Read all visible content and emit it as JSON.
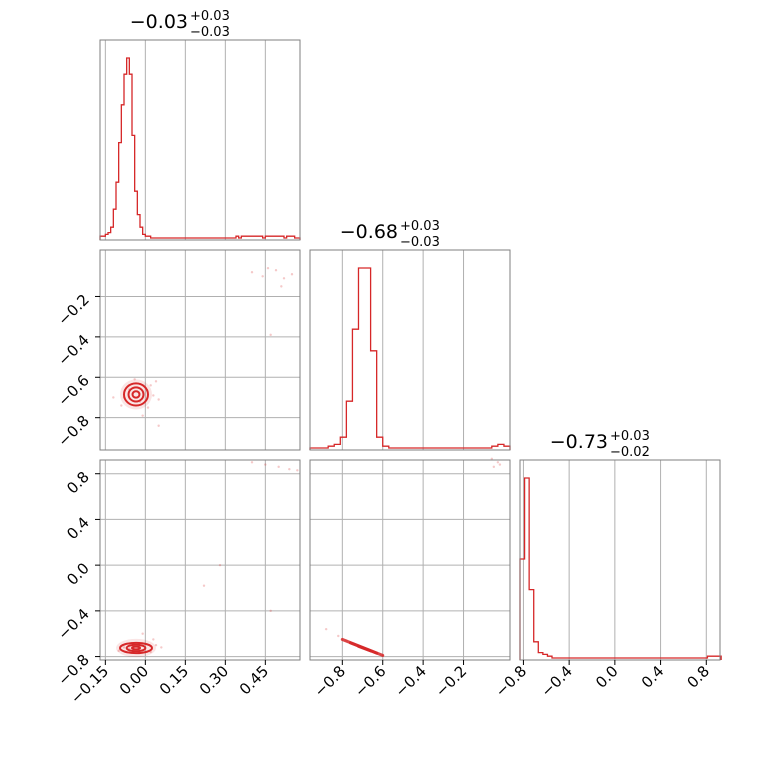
{
  "accent_color": "#d62728",
  "grid_color": "#b0b0b0",
  "chart_data": {
    "type": "scatter",
    "subtype": "corner plot",
    "grid": true,
    "parameters": [
      {
        "title": {
          "median": "−0.03",
          "plus": "+0.03",
          "minus": "−0.03"
        },
        "range": [
          -0.17,
          0.58
        ],
        "ticks": [
          -0.15,
          0.0,
          0.15,
          0.3,
          0.45
        ],
        "tick_labels": [
          "−0.15",
          "0.00",
          "0.15",
          "0.30",
          "0.45"
        ],
        "hist": {
          "x": [
            -0.165,
            -0.155,
            -0.145,
            -0.135,
            -0.125,
            -0.115,
            -0.105,
            -0.095,
            -0.085,
            -0.075,
            -0.065,
            -0.055,
            -0.045,
            -0.035,
            -0.025,
            -0.015,
            -0.005,
            0.005,
            0.015,
            0.025,
            0.035,
            0.045,
            0.055,
            0.065,
            0.075,
            0.085,
            0.095,
            0.105,
            0.115,
            0.125,
            0.135,
            0.145,
            0.155,
            0.165,
            0.175,
            0.185,
            0.195,
            0.205,
            0.215,
            0.225,
            0.235,
            0.245,
            0.255,
            0.265,
            0.275,
            0.285,
            0.295,
            0.305,
            0.315,
            0.325,
            0.335,
            0.345,
            0.355,
            0.365,
            0.375,
            0.385,
            0.395,
            0.405,
            0.415,
            0.425,
            0.435,
            0.445,
            0.455,
            0.465,
            0.475,
            0.485,
            0.495,
            0.505,
            0.515,
            0.525,
            0.535,
            0.545,
            0.555,
            0.565,
            0.575
          ],
          "counts": [
            1,
            1,
            2,
            3,
            6,
            16,
            31,
            53,
            74,
            91,
            100,
            91,
            57,
            26,
            13,
            6,
            2,
            1,
            1,
            0,
            0,
            0,
            0,
            0,
            0,
            0,
            0,
            0,
            0,
            0,
            0,
            0,
            0,
            0,
            0,
            0,
            0,
            0,
            0,
            0,
            0,
            0,
            0,
            0,
            0,
            0,
            0,
            0,
            0,
            0,
            0,
            1,
            0,
            1,
            1,
            1,
            1,
            1,
            1,
            1,
            1,
            0,
            1,
            1,
            1,
            1,
            1,
            1,
            1,
            0,
            1,
            1,
            1,
            0,
            0
          ]
        }
      },
      {
        "title": {
          "median": "−0.68",
          "plus": "+0.03",
          "minus": "−0.03"
        },
        "range": [
          -0.96,
          0.03
        ],
        "ticks": [
          -0.8,
          -0.6,
          -0.4,
          -0.2
        ],
        "tick_labels": [
          "−0.8",
          "−0.6",
          "−0.4",
          "−0.2"
        ],
        "hist": {
          "x": [
            -0.945,
            -0.915,
            -0.885,
            -0.855,
            -0.825,
            -0.795,
            -0.765,
            -0.735,
            -0.705,
            -0.675,
            -0.645,
            -0.615,
            -0.585,
            -0.555,
            -0.525,
            -0.495,
            -0.465,
            -0.435,
            -0.405,
            -0.375,
            -0.345,
            -0.315,
            -0.285,
            -0.255,
            -0.225,
            -0.195,
            -0.165,
            -0.135,
            -0.105,
            -0.075,
            -0.045,
            -0.015,
            0.015
          ],
          "counts": [
            0,
            0,
            0,
            1,
            2,
            6,
            26,
            66,
            100,
            100,
            54,
            6,
            1,
            0,
            0,
            0,
            0,
            0,
            0,
            0,
            0,
            0,
            0,
            0,
            0,
            0,
            0,
            0,
            0,
            0,
            1,
            2,
            1
          ]
        }
      },
      {
        "title": {
          "median": "−0.73",
          "plus": "+0.03",
          "minus": "−0.02"
        },
        "range": [
          -0.83,
          0.92
        ],
        "ticks": [
          -0.8,
          -0.4,
          0.0,
          0.4,
          0.8
        ],
        "tick_labels": [
          "−0.8",
          "−0.4",
          "0.0",
          "0.4",
          "0.8"
        ],
        "hist": {
          "x": [
            -0.81,
            -0.77,
            -0.73,
            -0.69,
            -0.65,
            -0.61,
            -0.57,
            -0.53,
            -0.49,
            -0.45,
            -0.41,
            -0.37,
            -0.33,
            -0.29,
            -0.25,
            -0.21,
            -0.17,
            -0.13,
            -0.09,
            -0.05,
            -0.01,
            0.03,
            0.07,
            0.11,
            0.15,
            0.19,
            0.23,
            0.27,
            0.31,
            0.35,
            0.39,
            0.43,
            0.47,
            0.51,
            0.55,
            0.59,
            0.63,
            0.67,
            0.71,
            0.75,
            0.79,
            0.83,
            0.87,
            0.91
          ],
          "counts": [
            55,
            100,
            38,
            9,
            3,
            2,
            1,
            0,
            0,
            0,
            0,
            0,
            0,
            0,
            0,
            0,
            0,
            0,
            0,
            0,
            0,
            0,
            0,
            0,
            0,
            0,
            0,
            0,
            0,
            0,
            0,
            0,
            0,
            0,
            0,
            0,
            0,
            0,
            0,
            0,
            0,
            1,
            1,
            1
          ]
        }
      }
    ],
    "joint": [
      {
        "row": 1,
        "col": 0,
        "scatter": [
          [
            -0.06,
            -0.66
          ],
          [
            -0.02,
            -0.72
          ],
          [
            0.02,
            -0.64
          ],
          [
            -0.08,
            -0.7
          ],
          [
            0.01,
            -0.75
          ],
          [
            -0.04,
            -0.61
          ],
          [
            0.03,
            -0.69
          ],
          [
            -0.09,
            -0.74
          ],
          [
            0.05,
            -0.71
          ],
          [
            -0.01,
            -0.79
          ],
          [
            -0.12,
            -0.7
          ],
          [
            0.04,
            -0.62
          ],
          [
            0.4,
            -0.08
          ],
          [
            0.44,
            -0.1
          ],
          [
            0.49,
            -0.07
          ],
          [
            0.52,
            -0.11
          ],
          [
            0.46,
            -0.06
          ],
          [
            0.55,
            -0.09
          ],
          [
            0.51,
            -0.15
          ],
          [
            0.47,
            -0.39
          ],
          [
            0.05,
            -0.84
          ]
        ],
        "contours": [
          {
            "center": [
              -0.035,
              -0.685
            ],
            "r": [
              0.045,
              0.055
            ]
          },
          {
            "center": [
              -0.035,
              -0.685
            ],
            "r": [
              0.028,
              0.035
            ]
          },
          {
            "center": [
              -0.035,
              -0.685
            ],
            "r": [
              0.013,
              0.016
            ]
          }
        ]
      },
      {
        "row": 2,
        "col": 0,
        "scatter": [
          [
            -0.06,
            -0.73
          ],
          [
            -0.02,
            -0.71
          ],
          [
            0.02,
            -0.76
          ],
          [
            -0.08,
            -0.72
          ],
          [
            0.03,
            -0.65
          ],
          [
            -0.1,
            -0.75
          ],
          [
            0.06,
            -0.72
          ],
          [
            -0.01,
            -0.6
          ],
          [
            0.04,
            -0.7
          ],
          [
            0.4,
            0.9
          ],
          [
            0.45,
            0.88
          ],
          [
            0.5,
            0.86
          ],
          [
            0.54,
            0.84
          ],
          [
            0.57,
            0.83
          ],
          [
            0.22,
            -0.18
          ],
          [
            0.28,
            0.0
          ],
          [
            0.47,
            -0.4
          ]
        ],
        "contours": [
          {
            "center": [
              -0.035,
              -0.725
            ],
            "r": [
              0.06,
              0.045
            ]
          },
          {
            "center": [
              -0.035,
              -0.725
            ],
            "r": [
              0.035,
              0.028
            ]
          },
          {
            "center": [
              -0.035,
              -0.725
            ],
            "r": [
              0.015,
              0.012
            ]
          }
        ]
      },
      {
        "row": 2,
        "col": 1,
        "scatter": [
          [
            -0.88,
            -0.56
          ],
          [
            -0.82,
            -0.62
          ],
          [
            -0.78,
            -0.66
          ],
          [
            -0.74,
            -0.69
          ],
          [
            -0.7,
            -0.72
          ],
          [
            -0.66,
            -0.75
          ],
          [
            -0.63,
            -0.77
          ],
          [
            -0.6,
            -0.79
          ],
          [
            -0.05,
            0.86
          ],
          [
            -0.03,
            0.9
          ],
          [
            -0.06,
            0.93
          ],
          [
            -0.02,
            0.88
          ]
        ],
        "contours": [
          {
            "segment": [
              [
                -0.8,
                -0.65
              ],
              [
                -0.6,
                -0.79
              ]
            ]
          },
          {
            "segment": [
              [
                -0.76,
                -0.68
              ],
              [
                -0.63,
                -0.77
              ]
            ]
          },
          {
            "segment": [
              [
                -0.72,
                -0.71
              ],
              [
                -0.66,
                -0.75
              ]
            ]
          }
        ]
      }
    ]
  }
}
